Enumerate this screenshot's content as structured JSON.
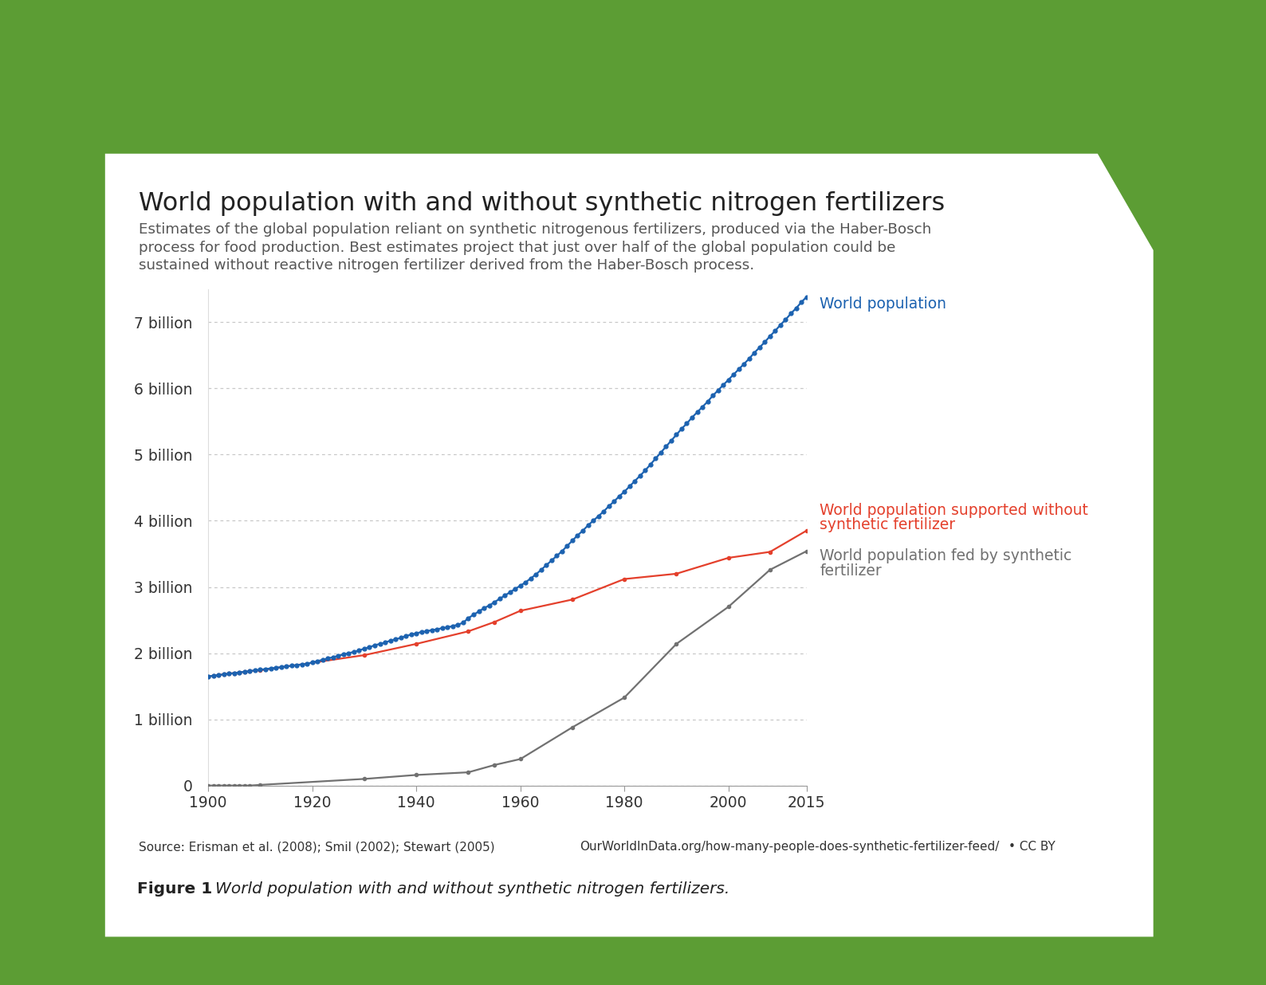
{
  "chart_data": {
    "type": "line",
    "title": "World population with and without synthetic nitrogen fertilizers",
    "subtitle": "Estimates of the global population reliant on synthetic nitrogenous fertilizers, produced via the Haber-Bosch process for food production. Best estimates project that just over half of the global population could be sustained without reactive nitrogen fertilizer derived from the Haber-Bosch process.",
    "source": "Source: Erisman et al. (2008); Smil (2002); Stewart (2005)",
    "url": "OurWorldInData.org/how-many-people-does-synthetic-fertilizer-feed/",
    "license": "• CC BY",
    "figure_label": "Figure 1",
    "caption": "World population with and without synthetic nitrogen fertilizers.",
    "xlim": [
      1900,
      2015
    ],
    "xticks": [
      1900,
      1920,
      1940,
      1960,
      1980,
      2000,
      2015
    ],
    "ylim": [
      0,
      7.5
    ],
    "yticks": [
      0,
      {
        "value": 1,
        "label": "1 billion"
      },
      {
        "value": 2,
        "label": "2 billion"
      },
      {
        "value": 3,
        "label": "3 billion"
      },
      {
        "value": 4,
        "label": "4 billion"
      },
      {
        "value": 5,
        "label": "5 billion"
      },
      {
        "value": 6,
        "label": "6 billion"
      },
      {
        "value": 7,
        "label": "7 billion"
      }
    ],
    "grid": true,
    "series": [
      {
        "name": "World population supported without synthetic fertilizer",
        "color": "#e4402c",
        "marker": "circle",
        "line_style": "solid",
        "x": [
          1900,
          1901,
          1902,
          1903,
          1904,
          1905,
          1906,
          1907,
          1908,
          1910,
          1930,
          1940,
          1950,
          1955,
          1960,
          1970,
          1980,
          1990,
          2000,
          2008,
          2015
        ],
        "values": [
          1.65,
          1.66,
          1.67,
          1.68,
          1.69,
          1.7,
          1.71,
          1.72,
          1.73,
          1.74,
          1.97,
          2.14,
          2.33,
          2.47,
          2.64,
          2.81,
          3.12,
          3.2,
          3.44,
          3.53,
          3.85
        ]
      },
      {
        "name": "World population fed by synthetic fertilizer",
        "color": "#717171",
        "marker": "circle",
        "line_style": "solid",
        "x": [
          1900,
          1901,
          1902,
          1903,
          1904,
          1905,
          1906,
          1907,
          1908,
          1910,
          1930,
          1940,
          1950,
          1955,
          1960,
          1970,
          1980,
          1990,
          2000,
          2008,
          2015
        ],
        "values": [
          0,
          0,
          0,
          0,
          0,
          0,
          0,
          0,
          0,
          0.01,
          0.1,
          0.16,
          0.2,
          0.31,
          0.4,
          0.88,
          1.33,
          2.14,
          2.7,
          3.26,
          3.54
        ]
      },
      {
        "name": "World population",
        "color": "#1c62b0",
        "marker": "circle",
        "line_style": "solid",
        "x": [
          1900,
          1901,
          1902,
          1903,
          1904,
          1905,
          1906,
          1907,
          1908,
          1909,
          1910,
          1911,
          1912,
          1913,
          1914,
          1915,
          1916,
          1917,
          1918,
          1919,
          1920,
          1921,
          1922,
          1923,
          1924,
          1925,
          1926,
          1927,
          1928,
          1929,
          1930,
          1931,
          1932,
          1933,
          1934,
          1935,
          1936,
          1937,
          1938,
          1939,
          1940,
          1941,
          1942,
          1943,
          1944,
          1945,
          1946,
          1947,
          1948,
          1949,
          1950,
          1951,
          1952,
          1953,
          1954,
          1955,
          1956,
          1957,
          1958,
          1959,
          1960,
          1961,
          1962,
          1963,
          1964,
          1965,
          1966,
          1967,
          1968,
          1969,
          1970,
          1971,
          1972,
          1973,
          1974,
          1975,
          1976,
          1977,
          1978,
          1979,
          1980,
          1981,
          1982,
          1983,
          1984,
          1985,
          1986,
          1987,
          1988,
          1989,
          1990,
          1991,
          1992,
          1993,
          1994,
          1995,
          1996,
          1997,
          1998,
          1999,
          2000,
          2001,
          2002,
          2003,
          2004,
          2005,
          2006,
          2007,
          2008,
          2009,
          2010,
          2011,
          2012,
          2013,
          2014,
          2015
        ],
        "values": [
          1.65,
          1.66,
          1.67,
          1.68,
          1.69,
          1.7,
          1.71,
          1.72,
          1.73,
          1.74,
          1.75,
          1.76,
          1.77,
          1.78,
          1.79,
          1.8,
          1.81,
          1.82,
          1.83,
          1.84,
          1.86,
          1.88,
          1.9,
          1.92,
          1.94,
          1.96,
          1.98,
          2.0,
          2.02,
          2.04,
          2.07,
          2.09,
          2.12,
          2.14,
          2.16,
          2.19,
          2.21,
          2.23,
          2.26,
          2.28,
          2.3,
          2.32,
          2.33,
          2.35,
          2.36,
          2.38,
          2.39,
          2.41,
          2.43,
          2.46,
          2.53,
          2.58,
          2.63,
          2.68,
          2.72,
          2.77,
          2.82,
          2.87,
          2.92,
          2.97,
          3.02,
          3.07,
          3.13,
          3.19,
          3.26,
          3.33,
          3.4,
          3.47,
          3.54,
          3.62,
          3.7,
          3.78,
          3.85,
          3.93,
          4.0,
          4.07,
          4.14,
          4.22,
          4.29,
          4.37,
          4.44,
          4.52,
          4.6,
          4.68,
          4.76,
          4.85,
          4.94,
          5.03,
          5.12,
          5.21,
          5.3,
          5.39,
          5.47,
          5.56,
          5.64,
          5.72,
          5.8,
          5.89,
          5.97,
          6.05,
          6.13,
          6.21,
          6.29,
          6.37,
          6.45,
          6.54,
          6.62,
          6.7,
          6.79,
          6.87,
          6.96,
          7.04,
          7.13,
          7.21,
          7.3,
          7.38
        ]
      }
    ]
  }
}
